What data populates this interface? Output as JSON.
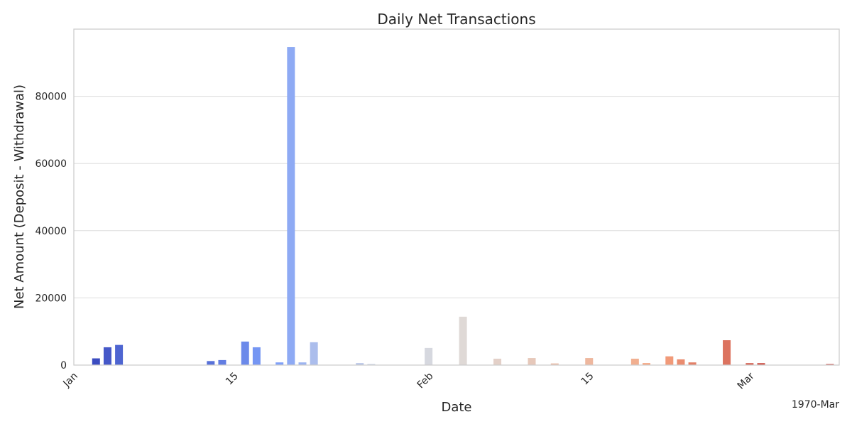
{
  "chart_data": {
    "type": "bar",
    "title": "Daily Net Transactions",
    "xlabel": "Date",
    "ylabel": "Net Amount (Deposit - Withdrawal)",
    "ylim": [
      0,
      100000
    ],
    "y_ticks": [
      0,
      20000,
      40000,
      60000,
      80000
    ],
    "x_tick_labels": [
      {
        "date": "1970-01-01",
        "label": "Jan"
      },
      {
        "date": "1970-01-15",
        "label": "15"
      },
      {
        "date": "1970-02-01",
        "label": "Feb"
      },
      {
        "date": "1970-02-15",
        "label": "15"
      },
      {
        "date": "1970-03-01",
        "label": "Mar"
      }
    ],
    "x_offset_label": "1970-Mar",
    "grid": true,
    "palette": "coolwarm",
    "bars": [
      {
        "date": "1970-01-03",
        "value": 2000
      },
      {
        "date": "1970-01-04",
        "value": 5300
      },
      {
        "date": "1970-01-05",
        "value": 6000
      },
      {
        "date": "1970-01-13",
        "value": 1200
      },
      {
        "date": "1970-01-14",
        "value": 1500
      },
      {
        "date": "1970-01-16",
        "value": 7000
      },
      {
        "date": "1970-01-17",
        "value": 5300
      },
      {
        "date": "1970-01-19",
        "value": 800
      },
      {
        "date": "1970-01-20",
        "value": 94700
      },
      {
        "date": "1970-01-21",
        "value": 800
      },
      {
        "date": "1970-01-22",
        "value": 6800
      },
      {
        "date": "1970-01-26",
        "value": 600
      },
      {
        "date": "1970-01-27",
        "value": 300
      },
      {
        "date": "1970-02-01",
        "value": 5100
      },
      {
        "date": "1970-02-04",
        "value": 14400
      },
      {
        "date": "1970-02-07",
        "value": 1900
      },
      {
        "date": "1970-02-10",
        "value": 2100
      },
      {
        "date": "1970-02-12",
        "value": 500
      },
      {
        "date": "1970-02-15",
        "value": 2100
      },
      {
        "date": "1970-02-19",
        "value": 1900
      },
      {
        "date": "1970-02-20",
        "value": 600
      },
      {
        "date": "1970-02-22",
        "value": 2600
      },
      {
        "date": "1970-02-23",
        "value": 1700
      },
      {
        "date": "1970-02-24",
        "value": 800
      },
      {
        "date": "1970-02-27",
        "value": 7400
      },
      {
        "date": "1970-03-01",
        "value": 600
      },
      {
        "date": "1970-03-02",
        "value": 600
      },
      {
        "date": "1970-03-08",
        "value": 300
      }
    ]
  }
}
